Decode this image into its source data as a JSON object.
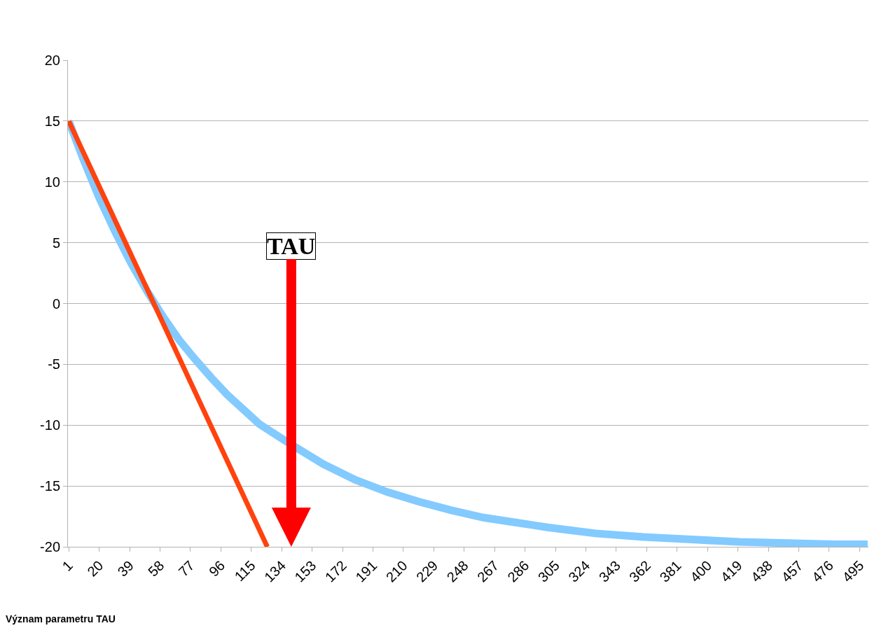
{
  "chart_data": {
    "type": "line",
    "series": [
      {
        "color": "#83caff",
        "x": [
          1,
          10,
          20,
          30,
          40,
          50,
          60,
          70,
          80,
          90,
          100,
          120,
          140,
          160,
          180,
          200,
          220,
          240,
          260,
          280,
          300,
          330,
          360,
          390,
          420,
          450,
          480,
          500
        ],
        "values": [
          15,
          11.9,
          8.7,
          5.9,
          3.3,
          1.0,
          -1.1,
          -3.0,
          -4.6,
          -6.1,
          -7.5,
          -9.9,
          -11.6,
          -13.2,
          -14.5,
          -15.5,
          -16.3,
          -17.0,
          -17.6,
          -18.0,
          -18.4,
          -18.9,
          -19.2,
          -19.4,
          -19.6,
          -19.7,
          -19.8,
          -19.8
        ]
      },
      {
        "color": "#ff420e",
        "x": [
          1,
          125
        ],
        "values": [
          15,
          -20
        ]
      }
    ],
    "xlim": [
      0.5,
      500.5
    ],
    "xticks": [
      1,
      20,
      39,
      58,
      77,
      96,
      115,
      134,
      153,
      172,
      191,
      210,
      229,
      248,
      267,
      286,
      305,
      324,
      343,
      362,
      381,
      400,
      419,
      438,
      457,
      476,
      495
    ],
    "ylim": [
      -20,
      20
    ],
    "yticks": [
      -20,
      -15,
      -10,
      -5,
      0,
      5,
      10,
      15,
      20
    ],
    "grid": "y",
    "marker": "none",
    "line_style": "solid",
    "annotations": [
      "TAU",
      "Význam parametru TAU"
    ]
  }
}
